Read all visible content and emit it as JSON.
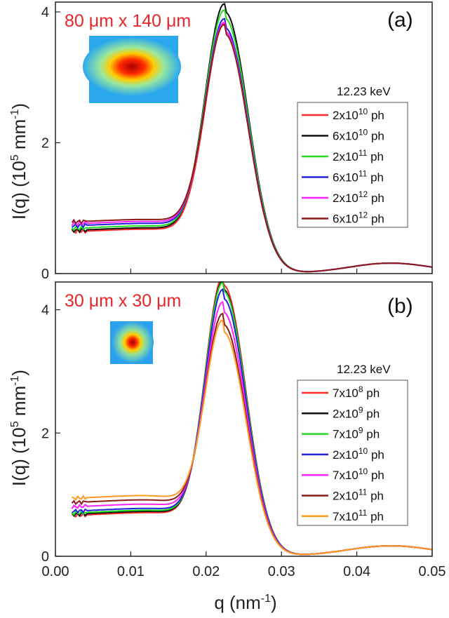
{
  "chart_data": [
    {
      "type": "line",
      "panel_label": "(a)",
      "beam_size_label": "80 μm x 140 μm",
      "energy_label": "12.23 keV",
      "xlabel": "q (nm⁻¹)",
      "ylabel": "I(q) (10⁵ mm⁻¹)",
      "xlim": [
        0.0,
        0.05
      ],
      "ylim": [
        0,
        4.15
      ],
      "x_ticks": [
        "0.00",
        "0.01",
        "0.02",
        "0.03",
        "0.04",
        "0.05"
      ],
      "y_ticks": [
        "0",
        "2",
        "4"
      ],
      "curve_model": {
        "peak_q": 0.0225,
        "left_width": 0.0026,
        "right_width": 0.0031,
        "second_peak_q": 0.0445,
        "second_peak_height": 0.16,
        "second_peak_width": 0.0056,
        "low_q_slope": 0.1
      },
      "series": [
        {
          "name": "2x10¹⁰ ph",
          "mant": "2x10",
          "exp": "10",
          "color": "#ff2a2a",
          "peak": 3.7,
          "base": 0.64,
          "q_start": 0.0022
        },
        {
          "name": "6x10¹⁰ ph",
          "mant": "6x10",
          "exp": "10",
          "color": "#111111",
          "peak": 4.0,
          "base": 0.66,
          "q_start": 0.0022
        },
        {
          "name": "2x10¹¹ ph",
          "mant": "2x10",
          "exp": "11",
          "color": "#22dd22",
          "peak": 3.9,
          "base": 0.69,
          "q_start": 0.0022
        },
        {
          "name": "6x10¹¹ ph",
          "mant": "6x10",
          "exp": "11",
          "color": "#2222dd",
          "peak": 3.76,
          "base": 0.73,
          "q_start": 0.0022
        },
        {
          "name": "2x10¹² ph",
          "mant": "2x10",
          "exp": "12",
          "color": "#ff22ff",
          "peak": 3.7,
          "base": 0.76,
          "q_start": 0.0022
        },
        {
          "name": "6x10¹² ph",
          "mant": "6x10",
          "exp": "12",
          "color": "#8b1a1a",
          "peak": 3.66,
          "base": 0.79,
          "q_start": 0.0022
        }
      ]
    },
    {
      "type": "line",
      "panel_label": "(b)",
      "beam_size_label": "30 μm x 30 μm",
      "energy_label": "12.23 keV",
      "xlabel": "q (nm⁻¹)",
      "ylabel": "I(q) (10⁵ mm⁻¹)",
      "xlim": [
        0.0,
        0.05
      ],
      "ylim": [
        0,
        4.45
      ],
      "x_ticks": [
        "0.00",
        "0.01",
        "0.02",
        "0.03",
        "0.04",
        "0.05"
      ],
      "y_ticks": [
        "0",
        "2",
        "4"
      ],
      "curve_model": {
        "peak_q": 0.0223,
        "left_width": 0.0024,
        "right_width": 0.003,
        "second_peak_q": 0.0445,
        "second_peak_height": 0.17,
        "second_peak_width": 0.0058,
        "low_q_slope": 0.12
      },
      "series": [
        {
          "name": "7x10⁸ ph",
          "mant": "7x10",
          "exp": "8",
          "color": "#ff2a2a",
          "peak": 4.4,
          "base": 0.66,
          "q_start": 0.0022
        },
        {
          "name": "2x10⁹ ph",
          "mant": "2x10",
          "exp": "9",
          "color": "#111111",
          "peak": 4.33,
          "base": 0.68,
          "q_start": 0.0022
        },
        {
          "name": "7x10⁹ ph",
          "mant": "7x10",
          "exp": "9",
          "color": "#22dd22",
          "peak": 4.3,
          "base": 0.7,
          "q_start": 0.0022
        },
        {
          "name": "2x10¹⁰ ph",
          "mant": "2x10",
          "exp": "10",
          "color": "#2222dd",
          "peak": 4.18,
          "base": 0.73,
          "q_start": 0.0022
        },
        {
          "name": "7x10¹⁰ ph",
          "mant": "7x10",
          "exp": "10",
          "color": "#ff22ff",
          "peak": 3.96,
          "base": 0.8,
          "q_start": 0.0022
        },
        {
          "name": "2x10¹¹ ph",
          "mant": "2x10",
          "exp": "11",
          "color": "#8b1a1a",
          "peak": 3.76,
          "base": 0.87,
          "q_start": 0.0022
        },
        {
          "name": "7x10¹¹ ph",
          "mant": "7x10",
          "exp": "11",
          "color": "#ff9922",
          "peak": 3.64,
          "base": 0.94,
          "q_start": 0.0022
        }
      ]
    }
  ]
}
